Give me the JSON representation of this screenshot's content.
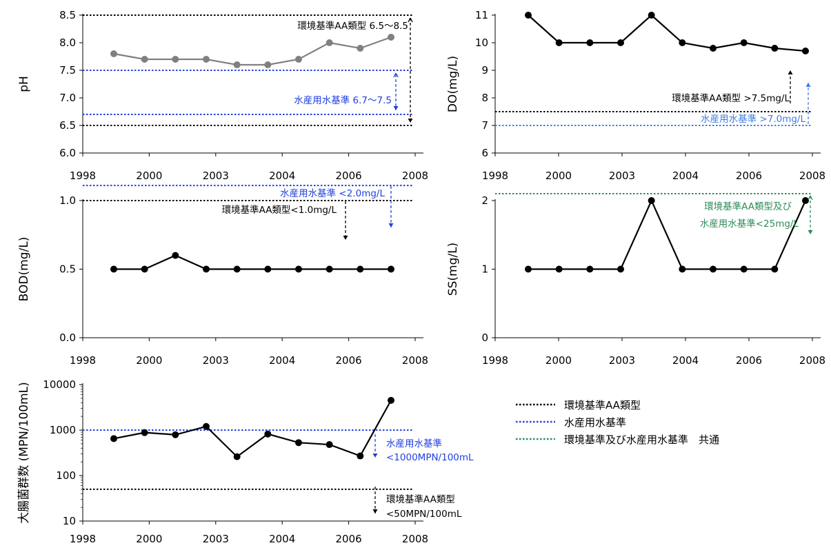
{
  "colors": {
    "black": "#000000",
    "gray_line": "#808080",
    "blue": "#1f3fe0",
    "blue_light": "#3f7de0",
    "green": "#2e8b57"
  },
  "legend": [
    {
      "label": "環境基準AA類型",
      "color": "#000000"
    },
    {
      "label": "水産用水基準",
      "color": "#1f3fe0"
    },
    {
      "label": "環境基準及び水産用水基準　共通",
      "color": "#2e8b57"
    }
  ],
  "chart_data": [
    {
      "id": "ph",
      "type": "line",
      "ylabel": "pH",
      "ylim": [
        6.0,
        8.5
      ],
      "yticks": [
        "6.0",
        "6.5",
        "7.0",
        "7.5",
        "8.0",
        "8.5"
      ],
      "xticks": [
        "1998",
        "2000",
        "2003",
        "2004",
        "2006",
        "2008"
      ],
      "series": [
        {
          "values": [
            7.8,
            7.7,
            7.7,
            7.7,
            7.6,
            7.6,
            7.7,
            8.0,
            7.9,
            8.1
          ]
        }
      ],
      "line_color": "#808080",
      "marker_color": "#808080",
      "reference_lines": [
        {
          "y": 8.5,
          "color": "#000000"
        },
        {
          "y": 6.5,
          "color": "#000000"
        },
        {
          "y": 7.5,
          "color": "#1f3fe0"
        },
        {
          "y": 6.7,
          "color": "#1f3fe0"
        }
      ],
      "annotations": [
        {
          "text": "環境基準AA類型 6.5〜8.5",
          "color": "#000000"
        },
        {
          "text": "水産用水基準 6.7〜7.5",
          "color": "#1f3fe0"
        }
      ]
    },
    {
      "id": "do",
      "type": "line",
      "ylabel": "DO(mg/L)",
      "ylim": [
        6,
        11
      ],
      "yticks": [
        "6",
        "7",
        "8",
        "9",
        "10",
        "11"
      ],
      "xticks": [
        "1998",
        "2000",
        "2003",
        "2004",
        "2006",
        "2008"
      ],
      "series": [
        {
          "values": [
            11.0,
            10.0,
            10.0,
            10.0,
            11.0,
            10.0,
            9.8,
            10.0,
            9.8,
            9.7
          ]
        }
      ],
      "line_color": "#000000",
      "marker_color": "#000000",
      "reference_lines": [
        {
          "y": 7.5,
          "color": "#000000"
        },
        {
          "y": 7.0,
          "color": "#3f7de0"
        }
      ],
      "annotations": [
        {
          "text": "環境基準AA類型 >7.5mg/L",
          "color": "#000000"
        },
        {
          "text": "水産用水基準 >7.0mg/L",
          "color": "#3f7de0"
        }
      ]
    },
    {
      "id": "bod",
      "type": "line",
      "ylabel": "BOD(mg/L)",
      "ylim": [
        0.0,
        1.0
      ],
      "yticks": [
        "0.0",
        "0.5",
        "1.0"
      ],
      "xticks": [
        "1998",
        "2000",
        "2003",
        "2004",
        "2006",
        "2008"
      ],
      "series": [
        {
          "values": [
            0.5,
            0.5,
            0.6,
            0.5,
            0.5,
            0.5,
            0.5,
            0.5,
            0.5,
            0.5
          ]
        }
      ],
      "line_color": "#000000",
      "marker_color": "#000000",
      "reference_lines": [
        {
          "y": 1.0,
          "color": "#000000"
        },
        {
          "y": 1.11,
          "color": "#1f3fe0"
        }
      ],
      "annotations": [
        {
          "text": "水産用水基準 <2.0mg/L",
          "color": "#1f3fe0"
        },
        {
          "text": "環境基準AA類型<1.0mg/L",
          "color": "#000000"
        }
      ]
    },
    {
      "id": "ss",
      "type": "line",
      "ylabel": "SS(mg/L)",
      "ylim": [
        0,
        2
      ],
      "yticks": [
        "0",
        "1",
        "2"
      ],
      "xticks": [
        "1998",
        "2000",
        "2003",
        "2004",
        "2006",
        "2008"
      ],
      "series": [
        {
          "values": [
            1,
            1,
            1,
            1,
            2,
            1,
            1,
            1,
            1,
            2
          ]
        }
      ],
      "line_color": "#000000",
      "marker_color": "#000000",
      "reference_lines": [
        {
          "y": 2.1,
          "color": "#2e8b57"
        }
      ],
      "annotations": [
        {
          "text": "環境基準AA類型及び",
          "color": "#2e8b57"
        },
        {
          "text": "水産用水基準<25mg/L",
          "color": "#2e8b57"
        }
      ]
    },
    {
      "id": "coliform",
      "type": "line",
      "ylabel": "大腸菌群数 (MPN/100mL)",
      "yscale": "log",
      "ylim": [
        10,
        10000
      ],
      "yticks": [
        "10",
        "100",
        "1000",
        "10000"
      ],
      "xticks": [
        "1998",
        "2000",
        "2003",
        "2004",
        "2006",
        "2008"
      ],
      "series": [
        {
          "values": [
            650,
            880,
            790,
            1200,
            260,
            820,
            530,
            480,
            270,
            4500
          ]
        }
      ],
      "line_color": "#000000",
      "marker_color": "#000000",
      "reference_lines": [
        {
          "y": 1000,
          "color": "#1f3fe0"
        },
        {
          "y": 50,
          "color": "#000000"
        }
      ],
      "annotations": [
        {
          "text": "水産用水基準",
          "color": "#1f3fe0"
        },
        {
          "text": "<1000MPN/100mL",
          "color": "#1f3fe0"
        },
        {
          "text": "環境基準AA類型",
          "color": "#000000"
        },
        {
          "text": "<50MPN/100mL",
          "color": "#000000"
        }
      ]
    }
  ]
}
